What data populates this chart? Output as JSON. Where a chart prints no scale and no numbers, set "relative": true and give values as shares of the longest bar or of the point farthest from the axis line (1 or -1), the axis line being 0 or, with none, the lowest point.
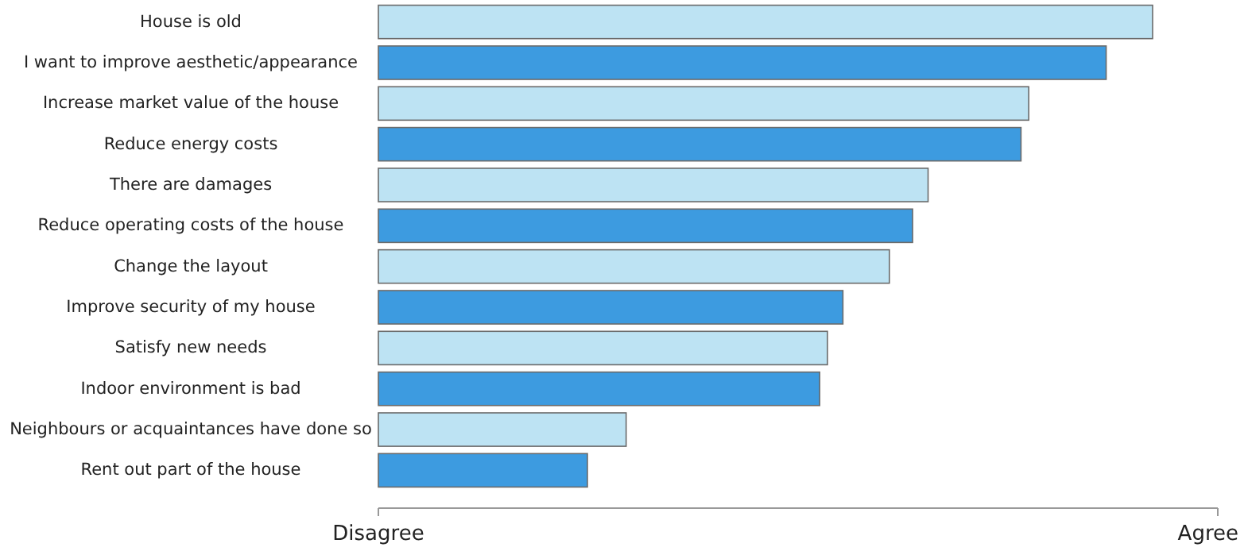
{
  "chart_data": {
    "type": "bar",
    "orientation": "horizontal",
    "relative": true,
    "categories": [
      "House is old",
      "I want to improve aesthetic/appearance",
      "Increase market value of the house",
      "Reduce energy costs",
      "There are damages",
      "Reduce operating costs of the house",
      "Change the layout",
      "Improve security of my house",
      "Satisfy new needs",
      "Indoor environment is bad",
      "Neighbours or acquaintances have done so",
      "Rent out part of the house"
    ],
    "values": [
      1,
      0.94,
      0.84,
      0.83,
      0.71,
      0.69,
      0.66,
      0.6,
      0.58,
      0.57,
      0.32,
      0.27
    ],
    "colors": [
      "#bde3f3",
      "#3d9be0",
      "#bde3f3",
      "#3d9be0",
      "#bde3f3",
      "#3d9be0",
      "#bde3f3",
      "#3d9be0",
      "#bde3f3",
      "#3d9be0",
      "#bde3f3",
      "#3d9be0"
    ],
    "annotations": [
      "Disagree",
      "Agree"
    ]
  }
}
